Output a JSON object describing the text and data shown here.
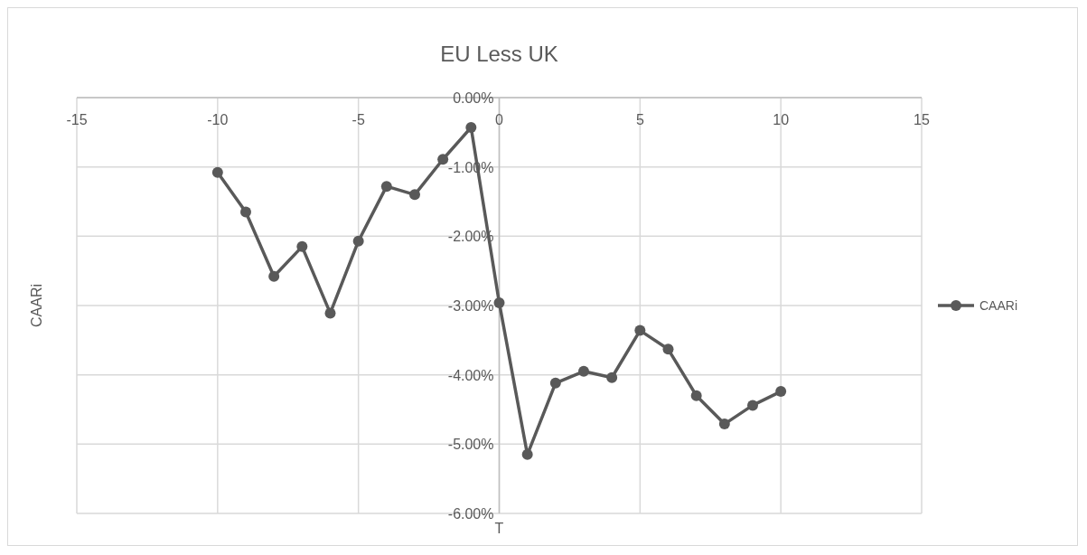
{
  "chart_data": {
    "type": "line",
    "title": "EU Less UK",
    "xlabel": "T",
    "ylabel": "CAARi",
    "x": [
      -10,
      -9,
      -8,
      -7,
      -6,
      -5,
      -4,
      -3,
      -2,
      -1,
      0,
      1,
      2,
      3,
      4,
      5,
      6,
      7,
      8,
      9,
      10
    ],
    "series": [
      {
        "name": "CAARi",
        "color": "#595959",
        "values": [
          -1.08,
          -1.65,
          -2.58,
          -2.15,
          -3.11,
          -2.07,
          -1.28,
          -1.4,
          -0.89,
          -0.43,
          -2.96,
          -5.15,
          -4.12,
          -3.95,
          -4.04,
          -3.36,
          -3.63,
          -4.3,
          -4.71,
          -4.44,
          -4.24
        ]
      }
    ],
    "xlim": [
      -15,
      15
    ],
    "xticks": [
      -15,
      -10,
      -5,
      0,
      5,
      10,
      15
    ],
    "ylim": [
      -6,
      0
    ],
    "yticks": [
      {
        "value": 0,
        "label": "0.00%"
      },
      {
        "value": -1,
        "label": "-1.00%"
      },
      {
        "value": -2,
        "label": "-2.00%"
      },
      {
        "value": -3,
        "label": "-3.00%"
      },
      {
        "value": -4,
        "label": "-4.00%"
      },
      {
        "value": -5,
        "label": "-5.00%"
      },
      {
        "value": -6,
        "label": "-6.00%"
      }
    ],
    "grid": true,
    "legend": "right",
    "marker": "circle",
    "line_style": "solid"
  }
}
